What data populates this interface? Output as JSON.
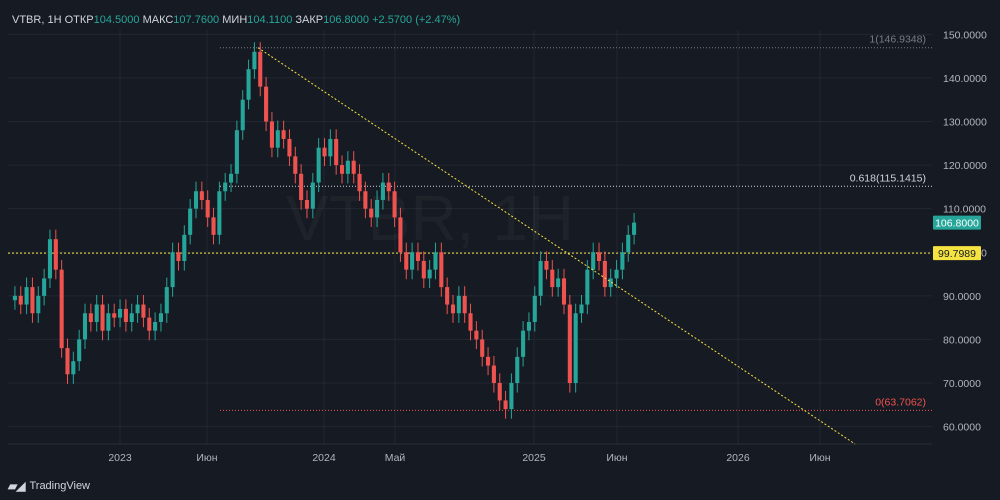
{
  "legend": {
    "symbol": "VTBR, 1H",
    "open_label": "ОТКР",
    "open": "104.5000",
    "high_label": "МАКС",
    "high": "107.7600",
    "low_label": "МИН",
    "low": "104.1100",
    "close_label": "ЗАКР",
    "close": "106.8000",
    "change": "+2.5700 (+2.47%)"
  },
  "watermark": "VTBR, 1H",
  "branding": "TradingView",
  "colors": {
    "up": "#26a69a",
    "down": "#ef5350",
    "last_price": "#26a69a",
    "dotted_level": "#f5e342"
  },
  "chart_data": {
    "type": "candlestick",
    "x_tick_labels": [
      "2023",
      "Июн",
      "2024",
      "Май",
      "2025",
      "Июн",
      "2026",
      "Июн"
    ],
    "y_tick_labels": [
      "60.0000",
      "70.0000",
      "80.0000",
      "90.0000",
      "100.0000",
      "110.0000",
      "120.0000",
      "130.0000",
      "140.0000",
      "150.0000"
    ],
    "ylim": [
      56,
      151
    ],
    "series_close": [
      90,
      88,
      92,
      86,
      90,
      94,
      103,
      96,
      78,
      72,
      75,
      80,
      86,
      84,
      88,
      82,
      86,
      85,
      87,
      84,
      86,
      88,
      85,
      82,
      84,
      86,
      92,
      100,
      98,
      104,
      110,
      114,
      112,
      108,
      104,
      114,
      116,
      118,
      128,
      135,
      142,
      146,
      138,
      130,
      124,
      128,
      126,
      122,
      118,
      112,
      110,
      116,
      124,
      122,
      126,
      120,
      118,
      121,
      118,
      114,
      110,
      108,
      112,
      116,
      114,
      108,
      100,
      96,
      100,
      98,
      94,
      96,
      100,
      92,
      88,
      86,
      90,
      86,
      82,
      80,
      76,
      74,
      70,
      66,
      64,
      70,
      76,
      82,
      84,
      90,
      98,
      96,
      92,
      94,
      88,
      70,
      86,
      88,
      96,
      100,
      98,
      92,
      94,
      96,
      100,
      104,
      106.8
    ],
    "levels": [
      {
        "label": "1(146.9348)",
        "value": 146.9348,
        "color": "#787b86"
      },
      {
        "label": "0.618(115.1415)",
        "value": 115.1415,
        "color": "#d1d4dc"
      },
      {
        "label": "0(63.7062)",
        "value": 63.7062,
        "color": "#ef5350"
      }
    ],
    "horizontal_line": {
      "label": "99.7989",
      "value": 99.7989
    },
    "last_price": {
      "label": "106.8000",
      "value": 106.8
    },
    "trendline": {
      "from": 146.9348,
      "to": 56
    }
  }
}
